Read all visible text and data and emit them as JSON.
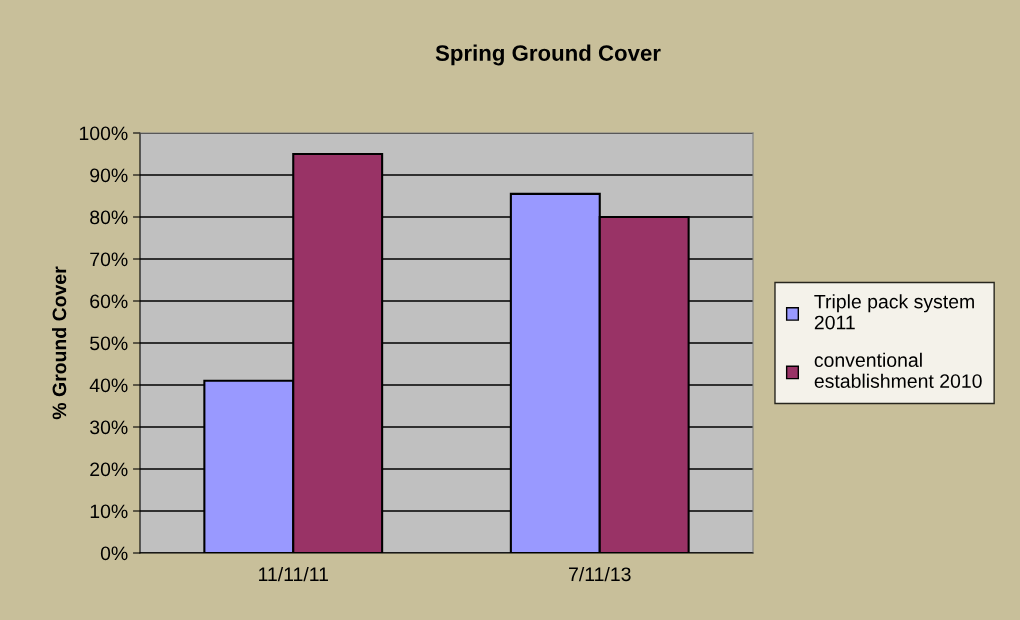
{
  "chart_data": {
    "type": "bar",
    "title": "Spring Ground Cover",
    "ylabel": "% Ground Cover",
    "categories": [
      "11/11/11",
      "7/11/13"
    ],
    "series": [
      {
        "name": "Triple pack system 2011",
        "color": "#9999ff",
        "values": [
          41,
          85.5
        ]
      },
      {
        "name": "conventional establishment 2010",
        "color": "#993366",
        "values": [
          95,
          80
        ]
      }
    ],
    "ylim": [
      0,
      100
    ],
    "yticks": [
      {
        "value": 0,
        "label": "0%"
      },
      {
        "value": 10,
        "label": "10%"
      },
      {
        "value": 20,
        "label": "20%"
      },
      {
        "value": 30,
        "label": "30%"
      },
      {
        "value": 40,
        "label": "40%"
      },
      {
        "value": 50,
        "label": "50%"
      },
      {
        "value": 60,
        "label": "60%"
      },
      {
        "value": 70,
        "label": "70%"
      },
      {
        "value": 80,
        "label": "80%"
      },
      {
        "value": 90,
        "label": "90%"
      },
      {
        "value": 100,
        "label": "100%"
      }
    ],
    "grid": "y",
    "legend": "right"
  }
}
